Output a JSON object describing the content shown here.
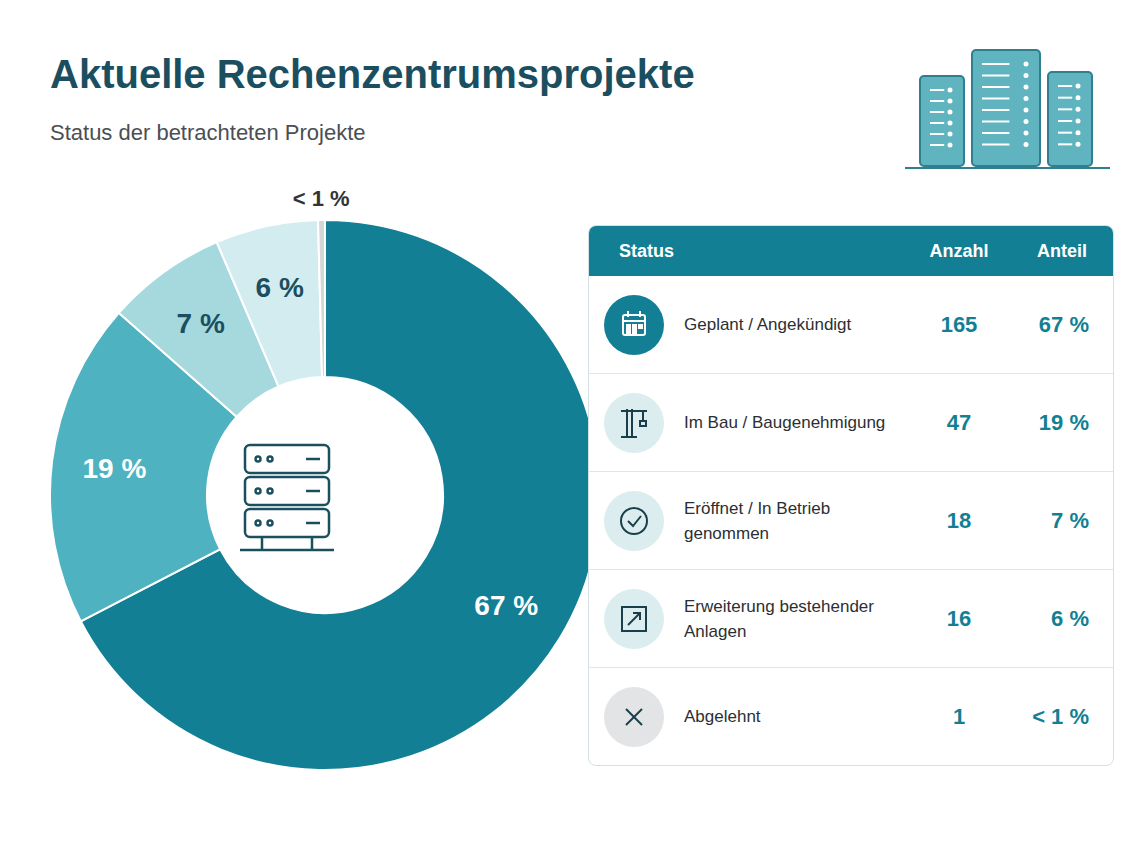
{
  "chart_data": {
    "type": "pie",
    "title": "Aktuelle Rechenzentrumsprojekte",
    "subtitle": "Status der betrachteten Projekte",
    "categories": [
      "Geplant / Angekündigt",
      "Im Bau / Baugenehmigung",
      "Eröffnet / In Betrieb genommen",
      "Erweiterung bestehender Anlagen",
      "Abgelehnt"
    ],
    "values": [
      67,
      19,
      7,
      6,
      0.4
    ],
    "value_labels": [
      "67 %",
      "19 %",
      "7 %",
      "6 %",
      "< 1 %"
    ],
    "colors": [
      "#137f94",
      "#4fb2c0",
      "#a6d9de",
      "#d2ecef",
      "#d4d6d7"
    ],
    "data_labels": true
  },
  "table": {
    "columns": [
      "Status",
      "Anzahl",
      "Anteil"
    ],
    "counts": [
      165,
      47,
      18,
      16,
      1
    ]
  }
}
